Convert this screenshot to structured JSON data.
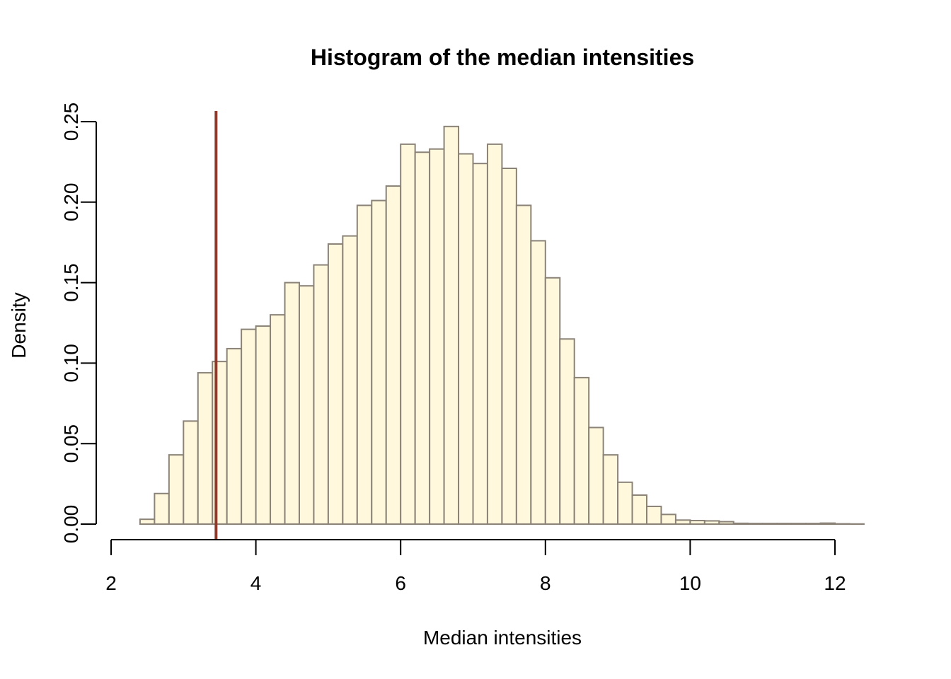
{
  "chart_data": {
    "type": "bar",
    "title": "Histogram of the median intensities",
    "xlabel": "Median intensities",
    "ylabel": "Density",
    "xlim": [
      2,
      12.4
    ],
    "ylim": [
      0,
      0.256
    ],
    "x_ticks": [
      "2",
      "4",
      "6",
      "8",
      "10",
      "12"
    ],
    "y_ticks": [
      "0.00",
      "0.05",
      "0.10",
      "0.15",
      "0.20",
      "0.25"
    ],
    "bin_width": 0.2,
    "bin_start": 2.4,
    "values": [
      0.003,
      0.019,
      0.043,
      0.064,
      0.094,
      0.101,
      0.109,
      0.121,
      0.123,
      0.13,
      0.15,
      0.148,
      0.161,
      0.174,
      0.179,
      0.198,
      0.201,
      0.21,
      0.236,
      0.231,
      0.233,
      0.247,
      0.23,
      0.224,
      0.236,
      0.221,
      0.198,
      0.176,
      0.153,
      0.115,
      0.091,
      0.06,
      0.043,
      0.026,
      0.018,
      0.011,
      0.006,
      0.0025,
      0.0022,
      0.002,
      0.0015,
      0.0005,
      0.0004,
      0.0004,
      0.0004,
      0.0004,
      0.0004,
      0.0006,
      0.0002,
      0.0001
    ],
    "vline": {
      "x": 3.45,
      "color": "#8b3a2b"
    },
    "colors": {
      "bar_fill": "#fff8dc",
      "bar_stroke": "#8b8378"
    },
    "grid": false
  }
}
